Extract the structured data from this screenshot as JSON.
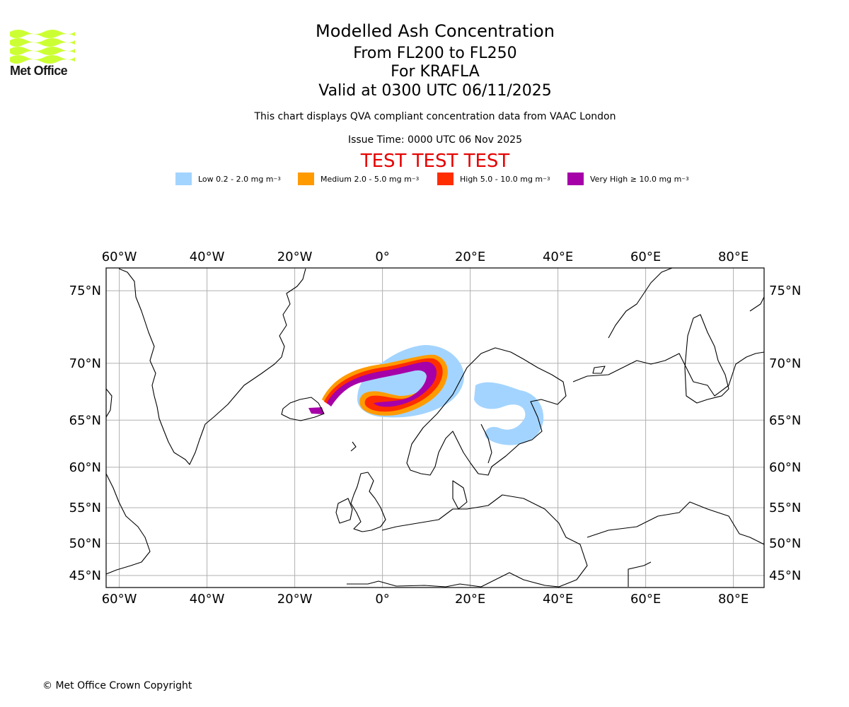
{
  "header": {
    "logo_text": "Met Office",
    "title": "Modelled Ash Concentration",
    "level_range": "From FL200 to FL250",
    "volcano": "For KRAFLA",
    "valid_time": "Valid at 0300 UTC 06/11/2025",
    "description": "This chart displays QVA compliant concentration data from VAAC London",
    "issue_time": "Issue Time: 0000 UTC 06 Nov 2025",
    "test_banner": "TEST TEST TEST"
  },
  "legend": [
    {
      "label": "Low 0.2 - 2.0 mg m",
      "sup": "−3",
      "color": "#a3d4ff"
    },
    {
      "label": "Medium 2.0 - 5.0 mg m",
      "sup": "−3",
      "color": "#ff9b00"
    },
    {
      "label": "High 5.0 - 10.0 mg m",
      "sup": "−3",
      "color": "#ff2d00"
    },
    {
      "label": "Very High  ≥  10.0 mg m",
      "sup": "−3",
      "color": "#a600a8"
    }
  ],
  "map": {
    "lon_labels": [
      "60°W",
      "40°W",
      "20°W",
      "0°",
      "20°E",
      "40°E",
      "60°E",
      "80°E"
    ],
    "lat_labels": [
      "75°N",
      "70°N",
      "65°N",
      "60°N",
      "55°N",
      "50°N",
      "45°N"
    ],
    "lon_values": [
      -60,
      -40,
      -20,
      0,
      20,
      40,
      60,
      80
    ],
    "lat_values": [
      75,
      70,
      65,
      60,
      55,
      50,
      45
    ],
    "extent": {
      "lon_min": -63,
      "lon_max": 87,
      "lat_min": 43,
      "lat_max": 76.3
    },
    "gridline_color": "#b0b0b0",
    "coast_color": "#000000"
  },
  "footer": {
    "copyright": "© Met Office Crown Copyright"
  }
}
